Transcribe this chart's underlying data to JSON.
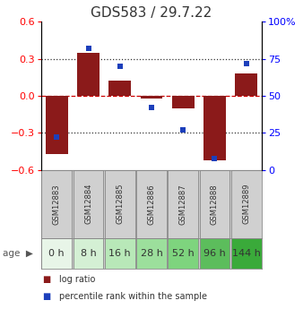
{
  "title": "GDS583 / 29.7.22",
  "samples": [
    "GSM12883",
    "GSM12884",
    "GSM12885",
    "GSM12886",
    "GSM12887",
    "GSM12888",
    "GSM12889"
  ],
  "ages": [
    "0 h",
    "8 h",
    "16 h",
    "28 h",
    "52 h",
    "96 h",
    "144 h"
  ],
  "log_ratio": [
    -0.47,
    0.35,
    0.12,
    -0.02,
    -0.1,
    -0.52,
    0.18
  ],
  "percentile_rank": [
    22,
    82,
    70,
    42,
    27,
    8,
    72
  ],
  "ylim_left": [
    -0.6,
    0.6
  ],
  "ylim_right": [
    0,
    100
  ],
  "yticks_left": [
    -0.6,
    -0.3,
    0,
    0.3,
    0.6
  ],
  "yticks_right": [
    0,
    25,
    50,
    75,
    100
  ],
  "ytick_labels_right": [
    "0",
    "25",
    "50",
    "75",
    "100%"
  ],
  "bar_color": "#8B1A1A",
  "dot_color": "#1C3FBB",
  "bar_width": 0.7,
  "age_colors": [
    "#e8f5e8",
    "#d4f0d4",
    "#b8e8b8",
    "#9cdf9c",
    "#7ed47e",
    "#5cbd5c",
    "#3aaa3a"
  ],
  "hline_color": "#cc0000",
  "dotted_line_color": "#333333",
  "background_color": "#ffffff",
  "legend_log_ratio": "log ratio",
  "legend_percentile": "percentile rank within the sample",
  "title_fontsize": 11,
  "axis_fontsize": 8,
  "label_fontsize": 7,
  "age_fontsize": 8,
  "gsm_fontsize": 6
}
